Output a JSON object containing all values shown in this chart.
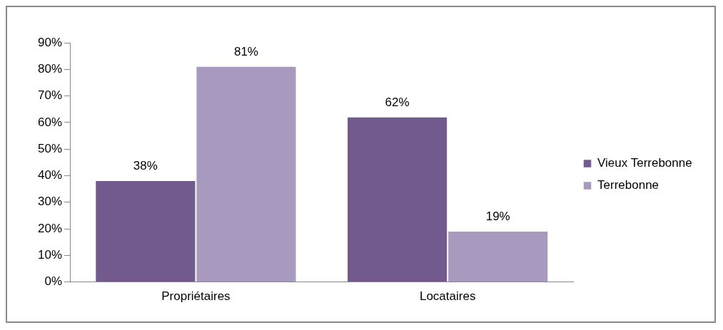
{
  "chart_data": {
    "type": "bar",
    "categories": [
      "Propriétaires",
      "Locataires"
    ],
    "series": [
      {
        "name": "Vieux Terrebonne",
        "color": "#725a8e",
        "values": [
          38,
          62
        ],
        "value_labels": [
          "38%",
          "62%"
        ]
      },
      {
        "name": "Terrebonne",
        "color": "#a899bf",
        "values": [
          81,
          19
        ],
        "value_labels": [
          "81%",
          "19%"
        ]
      }
    ],
    "ylim": [
      0,
      90
    ],
    "yticks": [
      {
        "value": 0,
        "label": "0%"
      },
      {
        "value": 10,
        "label": "10%"
      },
      {
        "value": 20,
        "label": "20%"
      },
      {
        "value": 30,
        "label": "30%"
      },
      {
        "value": 40,
        "label": "40%"
      },
      {
        "value": 50,
        "label": "50%"
      },
      {
        "value": 60,
        "label": "60%"
      },
      {
        "value": 70,
        "label": "70%"
      },
      {
        "value": 80,
        "label": "80%"
      },
      {
        "value": 90,
        "label": "90%"
      }
    ],
    "grid": false,
    "legend": "right"
  }
}
